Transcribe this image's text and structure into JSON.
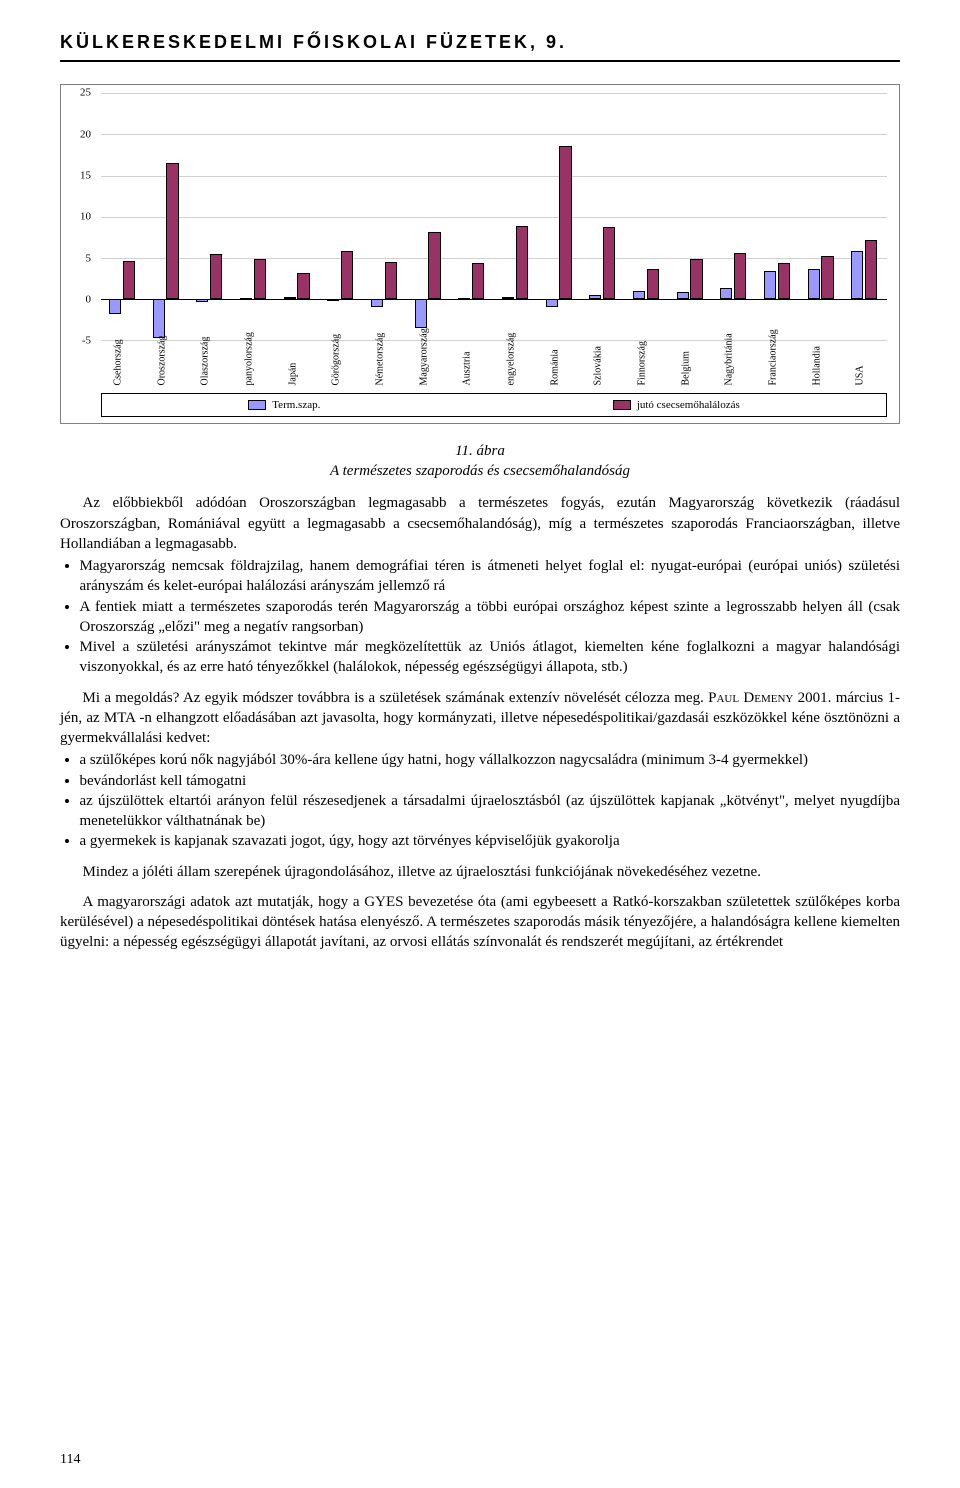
{
  "header_title": "KÜLKERESKEDELMI FŐISKOLAI FÜZETEK, 9.",
  "page_number": "114",
  "chart": {
    "type": "bar",
    "ylim": [
      -5,
      25
    ],
    "ytick_step": 5,
    "yticks": [
      -5,
      0,
      5,
      10,
      15,
      20,
      25
    ],
    "background_color": "#ffffff",
    "grid_color": "#d0d0d0",
    "series": [
      {
        "name": "Term.szap.",
        "color": "#9999ff"
      },
      {
        "name": "jutó csecsemőhalálozás",
        "color": "#993366"
      }
    ],
    "legend_labels": [
      "Term.szap.",
      "jutó csecsemőhalálozás"
    ],
    "categories": [
      "Csehország",
      "Oroszország",
      "Olaszország",
      "panyolország",
      "Japán",
      "Görögország",
      "Németország",
      "Magyarország",
      "Ausztria",
      "engyelország",
      "Románia",
      "Szlovákia",
      "Finnország",
      "Belgium",
      "Nagybritánia",
      "Franciaország",
      "Hollandia",
      "USA"
    ],
    "values_term": [
      -1.8,
      -4.7,
      -0.3,
      0.1,
      0.2,
      0.0,
      -0.9,
      -3.5,
      0.1,
      0.3,
      -0.9,
      0.5,
      1.0,
      0.9,
      1.3,
      3.4,
      3.6,
      5.8
    ],
    "values_mort": [
      4.6,
      16.5,
      5.5,
      4.9,
      3.2,
      5.9,
      4.5,
      8.1,
      4.4,
      8.9,
      18.6,
      8.8,
      3.6,
      4.9,
      5.6,
      4.4,
      5.2,
      7.2
    ],
    "label_fontsize": 10,
    "axis_fontsize": 11
  },
  "figure_caption_line1": "11. ábra",
  "figure_caption_line2": "A természetes szaporodás és csecsemőhalandóság",
  "para1": "Az előbbiekből adódóan Oroszországban legmagasabb a természetes fogyás, ezután Magyarország következik (ráadásul Oroszországban, Romániával együtt a legmagasabb a csecsemőhalandóság), míg a természetes szaporodás Franciaországban, illetve Hollandiában a legmagasabb.",
  "list1": [
    "Magyarország nemcsak földrajzilag, hanem demográfiai téren is átmeneti helyet foglal el: nyugat-európai (európai uniós) születési arányszám és kelet-európai halálozási arányszám jellemző rá",
    "A fentiek miatt a természetes szaporodás terén Magyarország a többi európai országhoz képest szinte a legrosszabb helyen áll (csak Oroszország „előzi\" meg a negatív rangsorban)",
    "Mivel a születési arányszámot tekintve már megközelítettük az Uniós átlagot, kiemelten kéne foglalkozni a magyar halandósági viszonyokkal, és az erre ható tényezőkkel (halálokok, népesség egészségügyi állapota, stb.)"
  ],
  "para2_prefix": "Mi a megoldás? Az egyik módszer továbbra is a születések számának extenzív növelését célozza meg. ",
  "para2_name": "Paul Demeny",
  "para2_suffix": " 2001. március 1-jén, az MTA -n elhangzott előadásában azt javasolta, hogy kormányzati, illetve népesedéspolitikai/gazdasái eszközökkel kéne ösztönözni a gyermekvállalási kedvet:",
  "list2": [
    "a szülőképes korú nők nagyjából 30%-ára kellene úgy hatni, hogy vállalkozzon nagycsaládra (minimum 3-4 gyermekkel)",
    "bevándorlást kell támogatni",
    "az újszülöttek eltartói arányon felül részesedjenek a társadalmi újraelosztásból (az újszülöttek kapjanak „kötvényt\", melyet nyugdíjba menetelükkor válthatnának be)",
    "a gyermekek is kapjanak szavazati jogot, úgy, hogy azt törvényes képviselőjük gyakorolja"
  ],
  "para3": "Mindez a jóléti állam szerepének újragondolásához, illetve az újraelosztási funkciójának növekedéséhez vezetne.",
  "para4": "A magyarországi adatok azt mutatják, hogy a GYES bevezetése óta (ami egybeesett a Ratkó-korszakban születettek szülőképes korba kerülésével) a népesedéspolitikai döntések hatása elenyésző. A természetes szaporodás másik tényezőjére, a halandóságra kellene kiemelten ügyelni: a népesség egészségügyi állapotát javítani, az orvosi ellátás színvonalát és rendszerét megújítani, az értékrendet"
}
